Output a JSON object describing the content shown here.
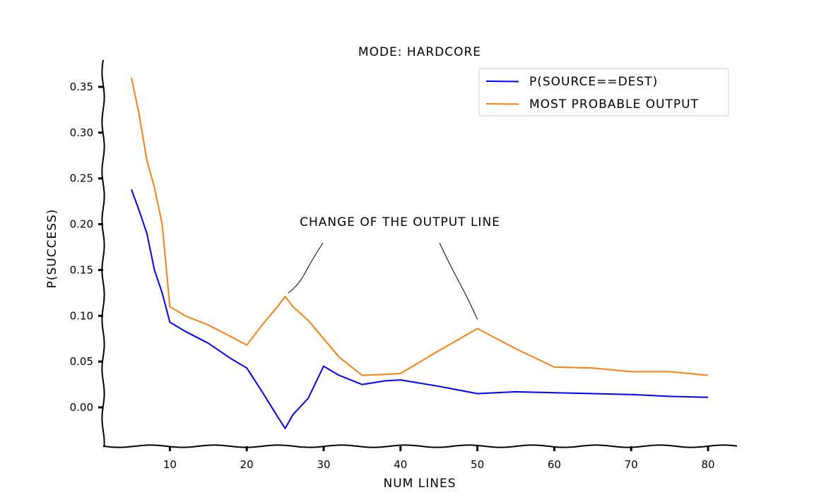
{
  "chart_data": {
    "type": "line",
    "title": "MODE: HARDCORE",
    "xlabel": "NUM LINES",
    "ylabel": "P(SUCCESS)",
    "xlim": [
      1,
      84
    ],
    "ylim": [
      -0.04,
      0.38
    ],
    "xticks": [
      10,
      20,
      30,
      40,
      50,
      60,
      70,
      80
    ],
    "yticks": [
      0.0,
      0.05,
      0.1,
      0.15,
      0.2,
      0.25,
      0.3,
      0.35
    ],
    "xtick_labels": [
      "10",
      "20",
      "30",
      "40",
      "50",
      "60",
      "70",
      "80"
    ],
    "ytick_labels": [
      "0.00",
      "0.05",
      "0.10",
      "0.15",
      "0.20",
      "0.25",
      "0.30",
      "0.35"
    ],
    "grid": false,
    "legend_position": "top-right",
    "series": [
      {
        "name": "P(SOURCE==DEST)",
        "color": "#0000ff",
        "x": [
          5,
          6,
          7,
          8,
          9,
          10,
          12,
          15,
          18,
          20,
          22,
          24,
          25,
          26,
          28,
          30,
          32,
          35,
          38,
          40,
          45,
          50,
          55,
          60,
          65,
          70,
          75,
          80
        ],
        "y": [
          0.238,
          0.215,
          0.19,
          0.15,
          0.125,
          0.093,
          0.083,
          0.07,
          0.053,
          0.043,
          0.017,
          -0.01,
          -0.023,
          -0.008,
          0.01,
          0.045,
          0.035,
          0.025,
          0.029,
          0.03,
          0.023,
          0.015,
          0.017,
          0.016,
          0.015,
          0.014,
          0.012,
          0.011
        ]
      },
      {
        "name": "MOST PROBABLE OUTPUT",
        "color": "#ff7f0e",
        "x": [
          5,
          6,
          7,
          8,
          9,
          10,
          12,
          15,
          18,
          20,
          22,
          24,
          25,
          26,
          28,
          30,
          32,
          35,
          38,
          40,
          45,
          50,
          55,
          60,
          65,
          70,
          75,
          80
        ],
        "y": [
          0.36,
          0.32,
          0.27,
          0.24,
          0.2,
          0.11,
          0.1,
          0.09,
          0.077,
          0.068,
          0.09,
          0.11,
          0.121,
          0.11,
          0.095,
          0.075,
          0.055,
          0.035,
          0.036,
          0.037,
          0.062,
          0.086,
          0.064,
          0.044,
          0.043,
          0.039,
          0.039,
          0.035
        ]
      }
    ],
    "annotations": [
      {
        "text": "CHANGE OF THE OUTPUT LINE",
        "targets": [
          [
            25,
            0.121
          ],
          [
            50,
            0.086
          ]
        ]
      }
    ]
  }
}
